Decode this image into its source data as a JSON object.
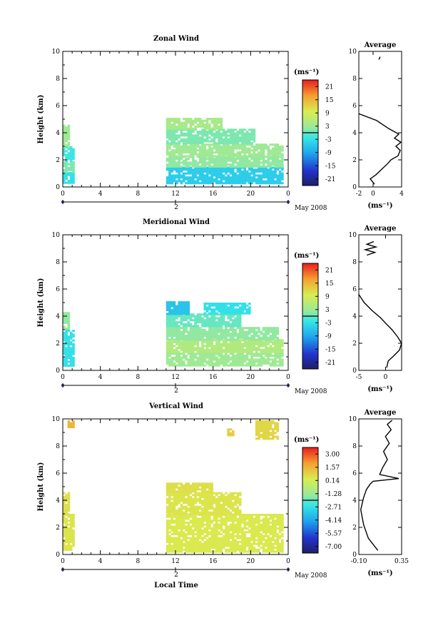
{
  "figure": {
    "x_label": "Local Time",
    "date_label": "May 2008",
    "day_label": "2",
    "height_label": "Height (km)",
    "unit_label": "(ms⁻¹)",
    "avg_title": "Average"
  },
  "chart_data": [
    {
      "type": "heatmap",
      "title": "Zonal Wind",
      "xlabel": "",
      "ylabel": "Height (km)",
      "xlim": [
        0,
        24
      ],
      "ylim": [
        0,
        10
      ],
      "x_ticks": [
        "0",
        "4",
        "8",
        "12",
        "16",
        "20",
        "0"
      ],
      "y_ticks": [
        "0",
        "2",
        "4",
        "6",
        "8",
        "10"
      ],
      "colorbar": {
        "unit": "(ms⁻¹)",
        "ticks": [
          "21",
          "15",
          "9",
          "3",
          "-3",
          "-9",
          "-15",
          "-21"
        ],
        "range": [
          -24,
          24
        ]
      },
      "data_blocks": [
        {
          "x": [
            0,
            1.2
          ],
          "y": [
            0.3,
            1.1
          ],
          "value": -3
        },
        {
          "x": [
            0,
            1.2
          ],
          "y": [
            1.1,
            1.9
          ],
          "value": 1
        },
        {
          "x": [
            0,
            1.2
          ],
          "y": [
            1.9,
            3.0
          ],
          "value": -2
        },
        {
          "x": [
            0,
            0.6
          ],
          "y": [
            3.0,
            4.6
          ],
          "value": 3
        },
        {
          "x": [
            11,
            23.5
          ],
          "y": [
            0.2,
            1.5
          ],
          "value": -5
        },
        {
          "x": [
            11,
            23.5
          ],
          "y": [
            1.5,
            2.3
          ],
          "value": 2
        },
        {
          "x": [
            11,
            23.5
          ],
          "y": [
            2.3,
            3.2
          ],
          "value": 3
        },
        {
          "x": [
            11,
            20.5
          ],
          "y": [
            3.2,
            4.3
          ],
          "value": 1
        },
        {
          "x": [
            11,
            17
          ],
          "y": [
            4.3,
            5.1
          ],
          "value": 4
        }
      ],
      "average": {
        "xlim": [
          -2,
          4
        ],
        "x_ticks": [
          "-2",
          "0",
          "4"
        ],
        "unit": "(ms⁻¹)",
        "profile_x": [
          0.2,
          -0.4,
          0.4,
          1.2,
          2.0,
          2.5,
          3.5,
          3.8,
          3.2,
          3.9,
          3.0,
          3.6,
          2.2,
          0.5,
          -2.0
        ],
        "profile_y": [
          0.2,
          0.6,
          0.9,
          1.3,
          1.7,
          2.0,
          2.3,
          2.7,
          3.0,
          3.3,
          3.6,
          3.9,
          4.3,
          4.9,
          5.4
        ],
        "upper_x": [
          0.8,
          1.0
        ],
        "upper_y": [
          9.4,
          9.6
        ]
      }
    },
    {
      "type": "heatmap",
      "title": "Meridional Wind",
      "xlabel": "",
      "ylabel": "Height (km)",
      "xlim": [
        0,
        24
      ],
      "ylim": [
        0,
        10
      ],
      "x_ticks": [
        "0",
        "4",
        "8",
        "12",
        "16",
        "20",
        "0"
      ],
      "y_ticks": [
        "0",
        "2",
        "4",
        "6",
        "8",
        "10"
      ],
      "colorbar": {
        "unit": "(ms⁻¹)",
        "ticks": [
          "21",
          "15",
          "9",
          "3",
          "-3",
          "-9",
          "-15",
          "-21"
        ],
        "range": [
          -24,
          24
        ]
      },
      "data_blocks": [
        {
          "x": [
            0,
            1.2
          ],
          "y": [
            0.3,
            3.0
          ],
          "value": -3
        },
        {
          "x": [
            0,
            0.6
          ],
          "y": [
            3.0,
            4.3
          ],
          "value": 2
        },
        {
          "x": [
            11,
            23.5
          ],
          "y": [
            0.3,
            1.3
          ],
          "value": 3
        },
        {
          "x": [
            11,
            23.5
          ],
          "y": [
            1.3,
            2.3
          ],
          "value": 5
        },
        {
          "x": [
            11,
            23
          ],
          "y": [
            2.3,
            3.2
          ],
          "value": 2
        },
        {
          "x": [
            11,
            19
          ],
          "y": [
            3.2,
            4.2
          ],
          "value": 0
        },
        {
          "x": [
            11,
            13.5
          ],
          "y": [
            4.2,
            5.1
          ],
          "value": -6
        },
        {
          "x": [
            15,
            20
          ],
          "y": [
            4.2,
            5.0
          ],
          "value": -3
        }
      ],
      "average": {
        "xlim": [
          -5,
          3
        ],
        "x_ticks": [
          "-5",
          "0"
        ],
        "unit": "(ms⁻¹)",
        "profile_x": [
          0.2,
          0.5,
          1.6,
          2.6,
          3.0,
          2.2,
          1.2,
          0.2,
          -1.0,
          -2.5,
          -4.0,
          -5.0
        ],
        "profile_y": [
          0.2,
          0.7,
          1.1,
          1.5,
          2.0,
          2.5,
          3.0,
          3.4,
          3.9,
          4.4,
          5.0,
          5.6
        ],
        "upper_x": [
          -3.5,
          -2.0,
          -3.8,
          -1.8,
          -3.5,
          -2.2
        ],
        "upper_y": [
          8.5,
          8.7,
          8.9,
          9.1,
          9.3,
          9.5
        ]
      }
    },
    {
      "type": "heatmap",
      "title": "Vertical Wind",
      "xlabel": "Local Time",
      "ylabel": "Height (km)",
      "xlim": [
        0,
        24
      ],
      "ylim": [
        0,
        10
      ],
      "x_ticks": [
        "0",
        "4",
        "8",
        "12",
        "16",
        "20",
        "0"
      ],
      "y_ticks": [
        "0",
        "2",
        "4",
        "6",
        "8",
        "10"
      ],
      "colorbar": {
        "unit": "(ms⁻¹)",
        "ticks": [
          "3.00",
          "1.57",
          "0.14",
          "-1.28",
          "-2.71",
          "-4.14",
          "-5.57",
          "-7.00"
        ],
        "range": [
          -7.7,
          3.7
        ]
      },
      "data_blocks": [
        {
          "x": [
            0,
            1.2
          ],
          "y": [
            0.3,
            3.0
          ],
          "value": 0.5
        },
        {
          "x": [
            0,
            0.6
          ],
          "y": [
            3.0,
            4.6
          ],
          "value": 0.6
        },
        {
          "x": [
            11,
            23.5
          ],
          "y": [
            0.2,
            3.0
          ],
          "value": 0.4
        },
        {
          "x": [
            11,
            19
          ],
          "y": [
            3.0,
            4.6
          ],
          "value": 0.5
        },
        {
          "x": [
            11,
            16
          ],
          "y": [
            4.6,
            5.3
          ],
          "value": 0.6
        },
        {
          "x": [
            0.5,
            1.2
          ],
          "y": [
            9.4,
            9.9
          ],
          "value": 1.5
        },
        {
          "x": [
            20.5,
            23
          ],
          "y": [
            8.5,
            9.9
          ],
          "value": 0.8
        },
        {
          "x": [
            17.5,
            18.2
          ],
          "y": [
            8.8,
            9.3
          ],
          "value": 1.0
        }
      ],
      "average": {
        "xlim": [
          -0.1,
          0.35
        ],
        "x_ticks": [
          "-0.10",
          "0.35"
        ],
        "unit": "(ms⁻¹)",
        "profile_x": [
          0.1,
          0.0,
          -0.05,
          -0.08,
          -0.05,
          -0.02,
          0.02,
          0.05,
          0.32,
          0.12,
          0.15,
          0.2,
          0.16,
          0.22,
          0.18,
          0.24,
          0.2,
          0.25
        ],
        "profile_y": [
          0.3,
          1.2,
          2.2,
          3.3,
          4.2,
          4.8,
          5.2,
          5.4,
          5.6,
          5.9,
          6.4,
          7.0,
          7.6,
          8.2,
          8.7,
          9.2,
          9.6,
          9.9
        ],
        "upper_x": [],
        "upper_y": []
      }
    }
  ]
}
